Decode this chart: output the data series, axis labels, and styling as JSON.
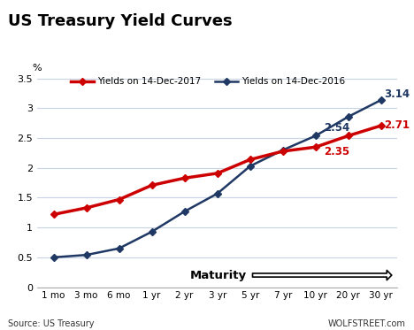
{
  "title": "US Treasury Yield Curves",
  "categories": [
    "1 mo",
    "3 mo",
    "6 mo",
    "1 yr",
    "2 yr",
    "3 yr",
    "5 yr",
    "7 yr",
    "10 yr",
    "20 yr",
    "30 yr"
  ],
  "yields_2017": [
    1.22,
    1.33,
    1.47,
    1.71,
    1.83,
    1.91,
    2.14,
    2.28,
    2.35,
    2.54,
    2.71
  ],
  "yields_2016": [
    0.5,
    0.54,
    0.65,
    0.93,
    1.27,
    1.57,
    2.03,
    2.3,
    2.54,
    2.86,
    3.14
  ],
  "color_2017": "#cc0000",
  "color_2016": "#1f3864",
  "label_2017": "Yields on 14-Dec-2017",
  "label_2016": "Yields on 14-Dec-2016",
  "ylabel": "%",
  "ylim": [
    0,
    3.6
  ],
  "yticks": [
    0,
    0.5,
    1.0,
    1.5,
    2.0,
    2.5,
    3.0,
    3.5
  ],
  "source_text": "Source: US Treasury",
  "watermark_text": "WOLFSTREET.com",
  "maturity_label": "Maturity",
  "background_color": "#ffffff",
  "grid_color": "#c8d4e3"
}
